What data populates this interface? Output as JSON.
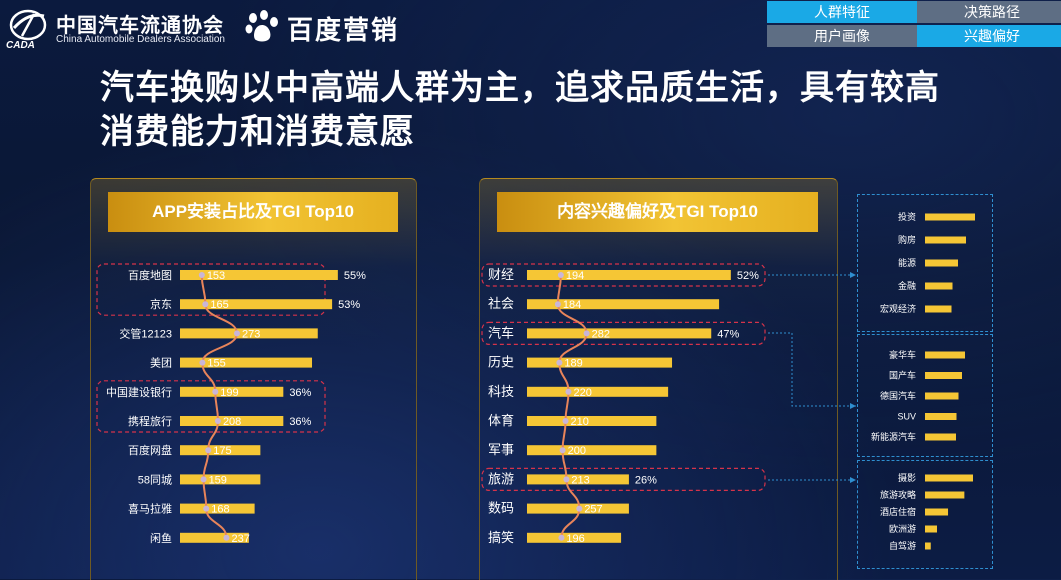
{
  "header": {
    "org_name_cn": "中国汽车流通协会",
    "org_name_en": "China Automobile Dealers Association",
    "org_abbr": "CADA",
    "partner_name": "百度营销"
  },
  "nav": {
    "tabs": [
      {
        "label": "人群特征",
        "active": true
      },
      {
        "label": "决策路径",
        "active": false
      },
      {
        "label": "用户画像",
        "active": false
      },
      {
        "label": "兴趣偏好",
        "active": true
      }
    ]
  },
  "headline": {
    "line1": "汽车换购以中高端人群为主，追求品质生活，具有较高",
    "line2": "消费能力和消费意愿"
  },
  "colors": {
    "bar": "#f5c635",
    "tgi_line": "#e8845a",
    "tgi_marker": "#c9b6d8",
    "highlight_box": "#d6334a",
    "sub_box": "#2f8fd0",
    "tab_active": "#1aa9e6",
    "tab_inactive": "#5e6e84"
  },
  "chart_data": [
    {
      "type": "bar",
      "title": "APP安装占比及TGI Top10",
      "categories": [
        "百度地图",
        "京东",
        "交管12123",
        "美团",
        "中国建设银行",
        "携程旅行",
        "百度网盘",
        "58同城",
        "喜马拉雅",
        "闲鱼"
      ],
      "values": [
        55,
        53,
        48,
        46,
        36,
        36,
        28,
        28,
        26,
        24
      ],
      "tgi": [
        153,
        165,
        273,
        155,
        199,
        208,
        175,
        159,
        168,
        237
      ],
      "labeled_percent": {
        "0": "55%",
        "1": "53%",
        "4": "36%",
        "5": "36%"
      },
      "highlight_groups": [
        [
          0,
          1
        ],
        [
          4,
          5
        ]
      ],
      "xlim": [
        0,
        60
      ]
    },
    {
      "type": "bar",
      "title": "内容兴趣偏好及TGI Top10",
      "categories": [
        "财经",
        "社会",
        "汽车",
        "历史",
        "科技",
        "体育",
        "军事",
        "旅游",
        "数码",
        "搞笑"
      ],
      "values": [
        52,
        49,
        47,
        37,
        36,
        33,
        33,
        26,
        26,
        24
      ],
      "tgi": [
        194,
        184,
        282,
        189,
        220,
        210,
        200,
        213,
        257,
        196
      ],
      "labeled_percent": {
        "0": "52%",
        "2": "47%",
        "7": "26%"
      },
      "highlight_groups": [
        [
          0
        ],
        [
          2
        ],
        [
          7
        ]
      ],
      "xlim": [
        0,
        60
      ]
    },
    {
      "type": "bar",
      "parent": "财经",
      "categories": [
        "投资",
        "购房",
        "能源",
        "金融",
        "宏观经济"
      ],
      "values": [
        100,
        82,
        66,
        55,
        53
      ]
    },
    {
      "type": "bar",
      "parent": "汽车",
      "categories": [
        "豪华车",
        "国产车",
        "德国汽车",
        "SUV",
        "新能源汽车"
      ],
      "values": [
        80,
        74,
        67,
        63,
        62
      ]
    },
    {
      "type": "bar",
      "parent": "旅游",
      "categories": [
        "摄影",
        "旅游攻略",
        "酒店住宿",
        "欧洲游",
        "自驾游"
      ],
      "values": [
        100,
        82,
        48,
        25,
        12
      ]
    }
  ]
}
